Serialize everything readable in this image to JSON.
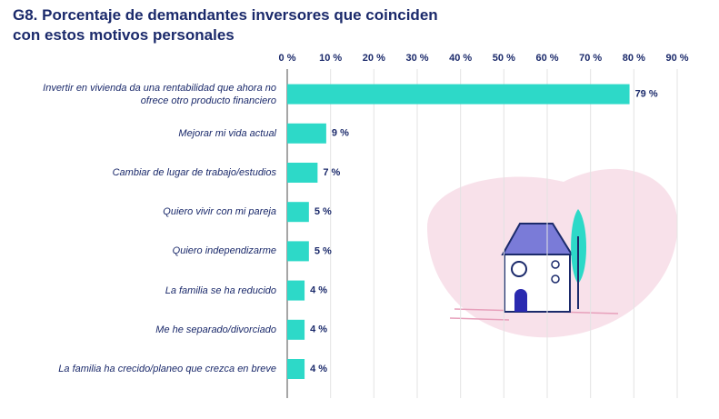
{
  "chart_data": {
    "type": "hbar",
    "title": "G8. Porcentaje de demandantes inversores que coinciden con estos motivos personales",
    "categories": [
      "Invertir en vivienda da una rentabilidad que ahora no ofrece otro producto financiero",
      "Mejorar mi vida actual",
      "Cambiar de lugar de trabajo/estudios",
      "Quiero vivir con mi pareja",
      "Quiero independizarme",
      "La familia se ha reducido",
      "Me he separado/divorciado",
      "La familia ha crecido/planeo que crezca en breve"
    ],
    "values": [
      79,
      9,
      7,
      5,
      5,
      4,
      4,
      4
    ],
    "value_labels": [
      "79 %",
      "9 %",
      "7 %",
      "5 %",
      "5 %",
      "4 %",
      "4 %",
      "4 %"
    ],
    "color": "#2dd9c8",
    "xlim": [
      0,
      90
    ],
    "xticks": [
      {
        "value": 0,
        "label": "0 %"
      },
      {
        "value": 10,
        "label": "10 %"
      },
      {
        "value": 20,
        "label": "20 %"
      },
      {
        "value": 30,
        "label": "30 %"
      },
      {
        "value": 40,
        "label": "40 %"
      },
      {
        "value": 50,
        "label": "50 %"
      },
      {
        "value": 60,
        "label": "60 %"
      },
      {
        "value": 70,
        "label": "70 %"
      },
      {
        "value": 80,
        "label": "80 %"
      },
      {
        "value": 90,
        "label": "90 %"
      }
    ],
    "grid": true
  }
}
